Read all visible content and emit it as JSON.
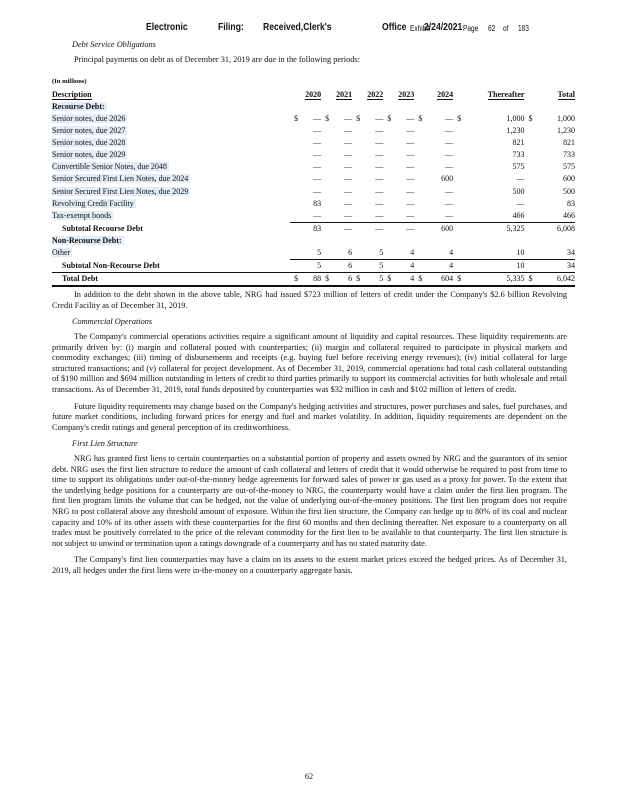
{
  "header": {
    "items": [
      "Electronic",
      "Filing:",
      "Received,Clerk's",
      "Office",
      "Exhibit",
      "2/24/2021",
      "Page",
      "62",
      "of",
      "183"
    ]
  },
  "section_title": "Debt Service Obligations",
  "intro": "Principal payments on debt as of December 31, 2019 are due in the following periods:",
  "table": {
    "unit": "(In millions)",
    "columns": [
      "Description",
      "2020",
      "2021",
      "2022",
      "2023",
      "2024",
      "Thereafter",
      "Total"
    ],
    "rows": [
      {
        "kind": "section",
        "label": "Recourse Debt:"
      },
      {
        "kind": "item",
        "label": "Senior notes, due 2026",
        "signs": [
          "$",
          "$",
          "$",
          "$",
          "$",
          "$",
          "$"
        ],
        "cells": [
          "—",
          "—",
          "—",
          "—",
          "—",
          "1,000",
          "1,000"
        ]
      },
      {
        "kind": "item",
        "label": "Senior notes, due 2027",
        "cells": [
          "—",
          "—",
          "—",
          "—",
          "—",
          "1,230",
          "1,230"
        ]
      },
      {
        "kind": "item",
        "label": "Senior notes, due 2028",
        "cells": [
          "—",
          "—",
          "—",
          "—",
          "—",
          "821",
          "821"
        ]
      },
      {
        "kind": "item",
        "label": "Senior notes, due 2029",
        "cells": [
          "—",
          "—",
          "—",
          "—",
          "—",
          "733",
          "733"
        ]
      },
      {
        "kind": "item",
        "label": "Convertible Senior Notes, due 2048",
        "cells": [
          "—",
          "—",
          "—",
          "—",
          "—",
          "575",
          "575"
        ]
      },
      {
        "kind": "item",
        "label": "Senior Secured First Lien Notes, due 2024",
        "cells": [
          "—",
          "—",
          "—",
          "—",
          "600",
          "—",
          "600"
        ]
      },
      {
        "kind": "item",
        "label": "Senior Secured First Lien Notes, due 2029",
        "cells": [
          "—",
          "—",
          "—",
          "—",
          "—",
          "500",
          "500"
        ]
      },
      {
        "kind": "item",
        "label": "Revolving Credit Facility",
        "cells": [
          "83",
          "—",
          "—",
          "—",
          "—",
          "—",
          "83"
        ]
      },
      {
        "kind": "item",
        "label": "Tax-exempt bonds",
        "cells": [
          "—",
          "—",
          "—",
          "—",
          "—",
          "466",
          "466"
        ]
      },
      {
        "kind": "subtotal",
        "label": "Subtotal Recourse Debt",
        "cells": [
          "83",
          "—",
          "—",
          "—",
          "600",
          "5,325",
          "6,008"
        ]
      },
      {
        "kind": "section",
        "label": "Non-Recourse Debt:"
      },
      {
        "kind": "item",
        "label": "Other",
        "cells": [
          "5",
          "6",
          "5",
          "4",
          "4",
          "10",
          "34"
        ]
      },
      {
        "kind": "subtotal",
        "label": "Subtotal Non-Recourse Debt",
        "cells": [
          "5",
          "6",
          "5",
          "4",
          "4",
          "10",
          "34"
        ]
      },
      {
        "kind": "total",
        "label": "Total Debt",
        "signs": [
          "$",
          "$",
          "$",
          "$",
          "$",
          "$",
          "$"
        ],
        "cells": [
          "88",
          "6",
          "5",
          "4",
          "604",
          "5,335",
          "6,042"
        ]
      }
    ]
  },
  "blocks": [
    {
      "kind": "paragraph",
      "text": "In addition to the debt shown in the above table, NRG had issued $723 million of letters of credit under the Company's $2.6 billion Revolving Credit Facility as of December 31, 2019."
    },
    {
      "kind": "heading",
      "text": "Commercial Operations"
    },
    {
      "kind": "paragraph",
      "text": "The Company's commercial operations activities require a significant amount of liquidity and capital resources. These liquidity requirements are primarily driven by: (i) margin and collateral posted with counterparties; (ii) margin and collateral required to participate in physical markets and commodity exchanges; (iii) timing of disbursements and receipts (e.g. buying fuel before receiving energy revenues); (iv) initial collateral for large structured transactions; and (v) collateral for project development. As of December 31, 2019, commercial operations had total cash collateral outstanding of $190 million and $694 million outstanding in letters of credit to third parties primarily to support its commercial activities for both wholesale and retail transactions. As of December 31, 2019, total funds deposited by counterparties was $32 million in cash and $102 million of letters of credit."
    },
    {
      "kind": "paragraph",
      "text": "Future liquidity requirements may change based on the Company's hedging activities and structures, power purchases and sales, fuel purchases, and future market conditions, including forward prices for energy and fuel and market volatility. In addition, liquidity requirements are dependent on the Company's credit ratings and general perception of its creditworthiness."
    },
    {
      "kind": "heading",
      "text": "First Lien Structure"
    },
    {
      "kind": "paragraph",
      "text": "NRG has granted first liens to certain counterparties on a substantial portion of property and assets owned by NRG and the guarantors of its senior debt. NRG uses the first lien structure to reduce the amount of cash collateral and letters of credit that it would otherwise be required to post from time to time to support its obligations under out-of-the-money hedge agreements for forward sales of power or gas used as a proxy for power. To the extent that the underlying hedge positions for a counterparty are out-of-the-money to NRG, the counterparty would have a claim under the first lien program. The first lien program limits the volume that can be hedged, not the value of underlying out-of-the-money positions. The first lien program does not require NRG to post collateral above any threshold amount of exposure. Within the first lien structure, the Company can hedge up to 80% of its coal and nuclear capacity and 10% of its other assets with these counterparties for the first 60 months and then declining thereafter. Net exposure to a counterparty on all trades must be positively correlated to the price of the relevant commodity for the first lien to be available to that counterparty. The first lien structure is not subject to unwind or termination upon a ratings downgrade of a counterparty and has no stated maturity date."
    },
    {
      "kind": "paragraph",
      "text": "The Company's first lien counterparties may have a claim on its assets to the extent market prices exceed the hedged prices. As of December 31, 2019, all hedges under the first liens were in-the-money on a counterparty aggregate basis."
    }
  ],
  "page_number": "62"
}
